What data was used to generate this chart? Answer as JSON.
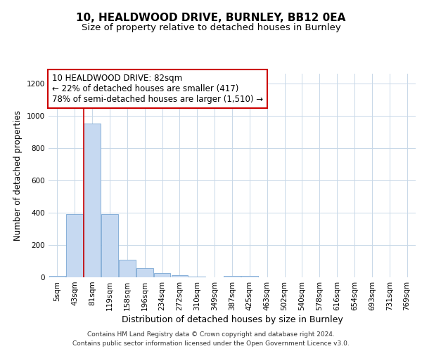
{
  "title1": "10, HEALDWOOD DRIVE, BURNLEY, BB12 0EA",
  "title2": "Size of property relative to detached houses in Burnley",
  "xlabel": "Distribution of detached houses by size in Burnley",
  "ylabel": "Number of detached properties",
  "categories": [
    "5sqm",
    "43sqm",
    "81sqm",
    "119sqm",
    "158sqm",
    "196sqm",
    "234sqm",
    "272sqm",
    "310sqm",
    "349sqm",
    "387sqm",
    "425sqm",
    "463sqm",
    "502sqm",
    "540sqm",
    "578sqm",
    "616sqm",
    "654sqm",
    "693sqm",
    "731sqm",
    "769sqm"
  ],
  "values": [
    10,
    390,
    950,
    390,
    110,
    55,
    25,
    15,
    5,
    0,
    10,
    10,
    0,
    0,
    0,
    0,
    0,
    0,
    0,
    0,
    0
  ],
  "bar_color": "#c6d9f1",
  "bar_edgecolor": "#7aa8d4",
  "vline_color": "#cc0000",
  "vline_x_index": 2,
  "annotation_text_line1": "10 HEALDWOOD DRIVE: 82sqm",
  "annotation_text_line2": "← 22% of detached houses are smaller (417)",
  "annotation_text_line3": "78% of semi-detached houses are larger (1,510) →",
  "annotation_box_edgecolor": "#cc0000",
  "ylim": [
    0,
    1260
  ],
  "yticks": [
    0,
    200,
    400,
    600,
    800,
    1000,
    1200
  ],
  "footer1": "Contains HM Land Registry data © Crown copyright and database right 2024.",
  "footer2": "Contains public sector information licensed under the Open Government Licence v3.0.",
  "bg_color": "#ffffff",
  "grid_color": "#c8d8e8",
  "title1_fontsize": 11,
  "title2_fontsize": 9.5,
  "xlabel_fontsize": 9,
  "ylabel_fontsize": 8.5,
  "tick_fontsize": 7.5,
  "annotation_fontsize": 8.5,
  "footer_fontsize": 6.5
}
